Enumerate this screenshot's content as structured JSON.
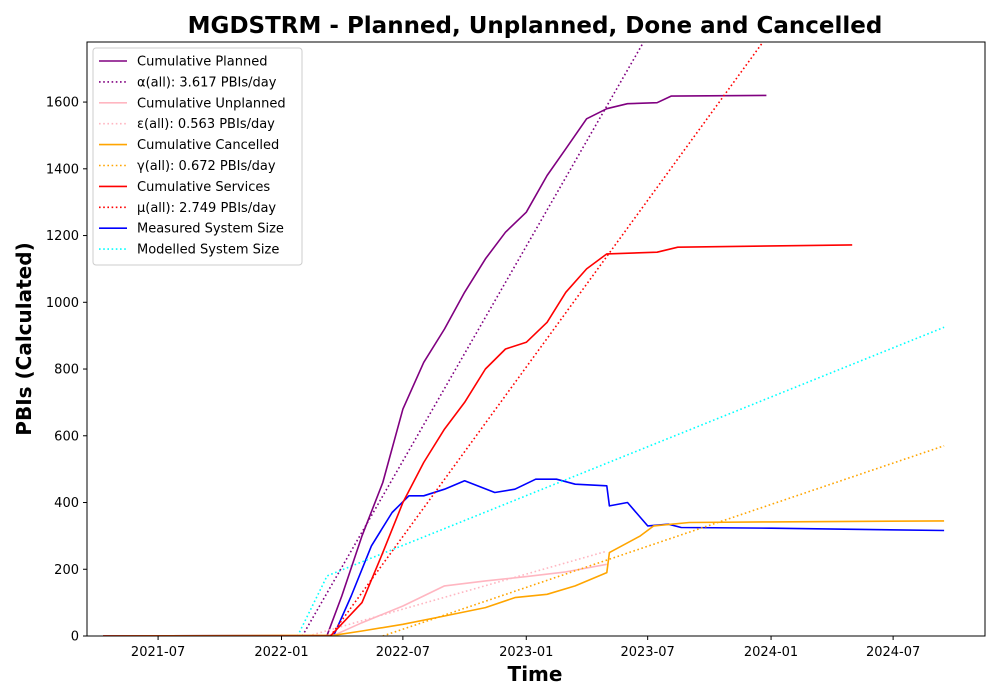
{
  "chart_data": {
    "type": "line",
    "title": "MGDSTRM - Planned, Unplanned, Done  and Cancelled",
    "xlabel": "Time",
    "ylabel": "PBIs (Calculated)",
    "xlim": [
      "2021-03-17",
      "2024-11-15"
    ],
    "ylim": [
      0,
      1780
    ],
    "x_ticks": [
      {
        "date": "2021-07-01",
        "label": "2021-07"
      },
      {
        "date": "2022-01-01",
        "label": "2022-01"
      },
      {
        "date": "2022-07-01",
        "label": "2022-07"
      },
      {
        "date": "2023-01-01",
        "label": "2023-01"
      },
      {
        "date": "2023-07-01",
        "label": "2023-07"
      },
      {
        "date": "2024-01-01",
        "label": "2024-01"
      },
      {
        "date": "2024-07-01",
        "label": "2024-07"
      }
    ],
    "y_ticks": [
      0,
      200,
      400,
      600,
      800,
      1000,
      1200,
      1400,
      1600
    ],
    "legend_position": "top-left",
    "grid": false,
    "series": [
      {
        "name": "Cumulative Planned",
        "color": "#800080",
        "style": "solid",
        "points": [
          [
            "2021-04-10",
            0
          ],
          [
            "2022-02-15",
            0
          ],
          [
            "2022-03-10",
            2
          ],
          [
            "2022-04-01",
            120
          ],
          [
            "2022-05-01",
            300
          ],
          [
            "2022-06-01",
            460
          ],
          [
            "2022-07-01",
            680
          ],
          [
            "2022-08-01",
            820
          ],
          [
            "2022-09-01",
            920
          ],
          [
            "2022-10-01",
            1030
          ],
          [
            "2022-11-01",
            1130
          ],
          [
            "2022-12-01",
            1210
          ],
          [
            "2023-01-01",
            1270
          ],
          [
            "2023-02-01",
            1380
          ],
          [
            "2023-03-01",
            1460
          ],
          [
            "2023-04-01",
            1550
          ],
          [
            "2023-05-01",
            1580
          ],
          [
            "2023-06-01",
            1595
          ],
          [
            "2023-07-15",
            1598
          ],
          [
            "2023-08-05",
            1618
          ],
          [
            "2023-12-25",
            1620
          ]
        ]
      },
      {
        "name": "α(all): 3.617 PBIs/day",
        "color": "#800080",
        "style": "dotted",
        "points": [
          [
            "2022-02-01",
            0
          ],
          [
            "2023-06-25",
            1780
          ]
        ]
      },
      {
        "name": "Cumulative Unplanned",
        "color": "#ffb6c1",
        "style": "solid",
        "points": [
          [
            "2021-04-10",
            0
          ],
          [
            "2022-03-20",
            2
          ],
          [
            "2022-05-01",
            40
          ],
          [
            "2022-07-01",
            90
          ],
          [
            "2022-09-01",
            150
          ],
          [
            "2022-11-01",
            165
          ],
          [
            "2023-01-01",
            178
          ],
          [
            "2023-03-01",
            192
          ],
          [
            "2023-05-01",
            215
          ]
        ]
      },
      {
        "name": "ε(all): 0.563 PBIs/day",
        "color": "#ffb6c1",
        "style": "dotted",
        "points": [
          [
            "2022-02-10",
            0
          ],
          [
            "2023-05-01",
            254
          ]
        ]
      },
      {
        "name": "Cumulative Cancelled",
        "color": "#ffa500",
        "style": "solid",
        "points": [
          [
            "2021-04-10",
            0
          ],
          [
            "2022-03-20",
            2
          ],
          [
            "2022-05-01",
            15
          ],
          [
            "2022-07-01",
            35
          ],
          [
            "2022-09-01",
            60
          ],
          [
            "2022-11-01",
            85
          ],
          [
            "2022-12-15",
            115
          ],
          [
            "2023-02-01",
            125
          ],
          [
            "2023-03-15",
            150
          ],
          [
            "2023-05-01",
            190
          ],
          [
            "2023-05-05",
            250
          ],
          [
            "2023-06-20",
            300
          ],
          [
            "2023-07-10",
            330
          ],
          [
            "2023-09-01",
            340
          ],
          [
            "2024-01-01",
            342
          ],
          [
            "2024-09-15",
            345
          ]
        ]
      },
      {
        "name": "γ(all): 0.672 PBIs/day",
        "color": "#ffa500",
        "style": "dotted",
        "points": [
          [
            "2022-06-01",
            0
          ],
          [
            "2024-09-15",
            570
          ]
        ]
      },
      {
        "name": "Cumulative Services",
        "color": "#ff0000",
        "style": "solid",
        "points": [
          [
            "2021-04-10",
            0
          ],
          [
            "2022-03-15",
            0
          ],
          [
            "2022-05-01",
            100
          ],
          [
            "2022-06-01",
            250
          ],
          [
            "2022-07-01",
            400
          ],
          [
            "2022-08-01",
            520
          ],
          [
            "2022-09-01",
            620
          ],
          [
            "2022-10-01",
            700
          ],
          [
            "2022-11-01",
            800
          ],
          [
            "2022-12-01",
            860
          ],
          [
            "2023-01-01",
            880
          ],
          [
            "2023-02-01",
            940
          ],
          [
            "2023-03-01",
            1030
          ],
          [
            "2023-04-01",
            1100
          ],
          [
            "2023-05-01",
            1145
          ],
          [
            "2023-07-15",
            1150
          ],
          [
            "2023-08-15",
            1165
          ],
          [
            "2024-05-01",
            1172
          ]
        ]
      },
      {
        "name": "μ(all): 2.749 PBIs/day",
        "color": "#ff0000",
        "style": "dotted",
        "points": [
          [
            "2022-03-15",
            0
          ],
          [
            "2023-12-20",
            1780
          ]
        ]
      },
      {
        "name": "Measured System Size",
        "color": "#0000ff",
        "style": "solid",
        "points": [
          [
            "2021-04-10",
            0
          ],
          [
            "2022-03-20",
            2
          ],
          [
            "2022-04-15",
            120
          ],
          [
            "2022-05-15",
            270
          ],
          [
            "2022-06-15",
            370
          ],
          [
            "2022-07-10",
            420
          ],
          [
            "2022-08-01",
            420
          ],
          [
            "2022-09-01",
            440
          ],
          [
            "2022-10-01",
            465
          ],
          [
            "2022-11-15",
            430
          ],
          [
            "2022-12-15",
            440
          ],
          [
            "2023-01-15",
            470
          ],
          [
            "2023-02-15",
            470
          ],
          [
            "2023-03-15",
            455
          ],
          [
            "2023-05-01",
            450
          ],
          [
            "2023-05-05",
            390
          ],
          [
            "2023-06-01",
            400
          ],
          [
            "2023-07-01",
            330
          ],
          [
            "2023-08-01",
            335
          ],
          [
            "2023-08-20",
            325
          ],
          [
            "2024-01-01",
            323
          ],
          [
            "2024-09-15",
            316
          ]
        ]
      },
      {
        "name": "Modelled System Size",
        "color": "#00ffff",
        "style": "dotted",
        "points": [
          [
            "2022-01-25",
            0
          ],
          [
            "2022-03-10",
            180
          ],
          [
            "2024-09-15",
            925
          ]
        ]
      }
    ]
  }
}
